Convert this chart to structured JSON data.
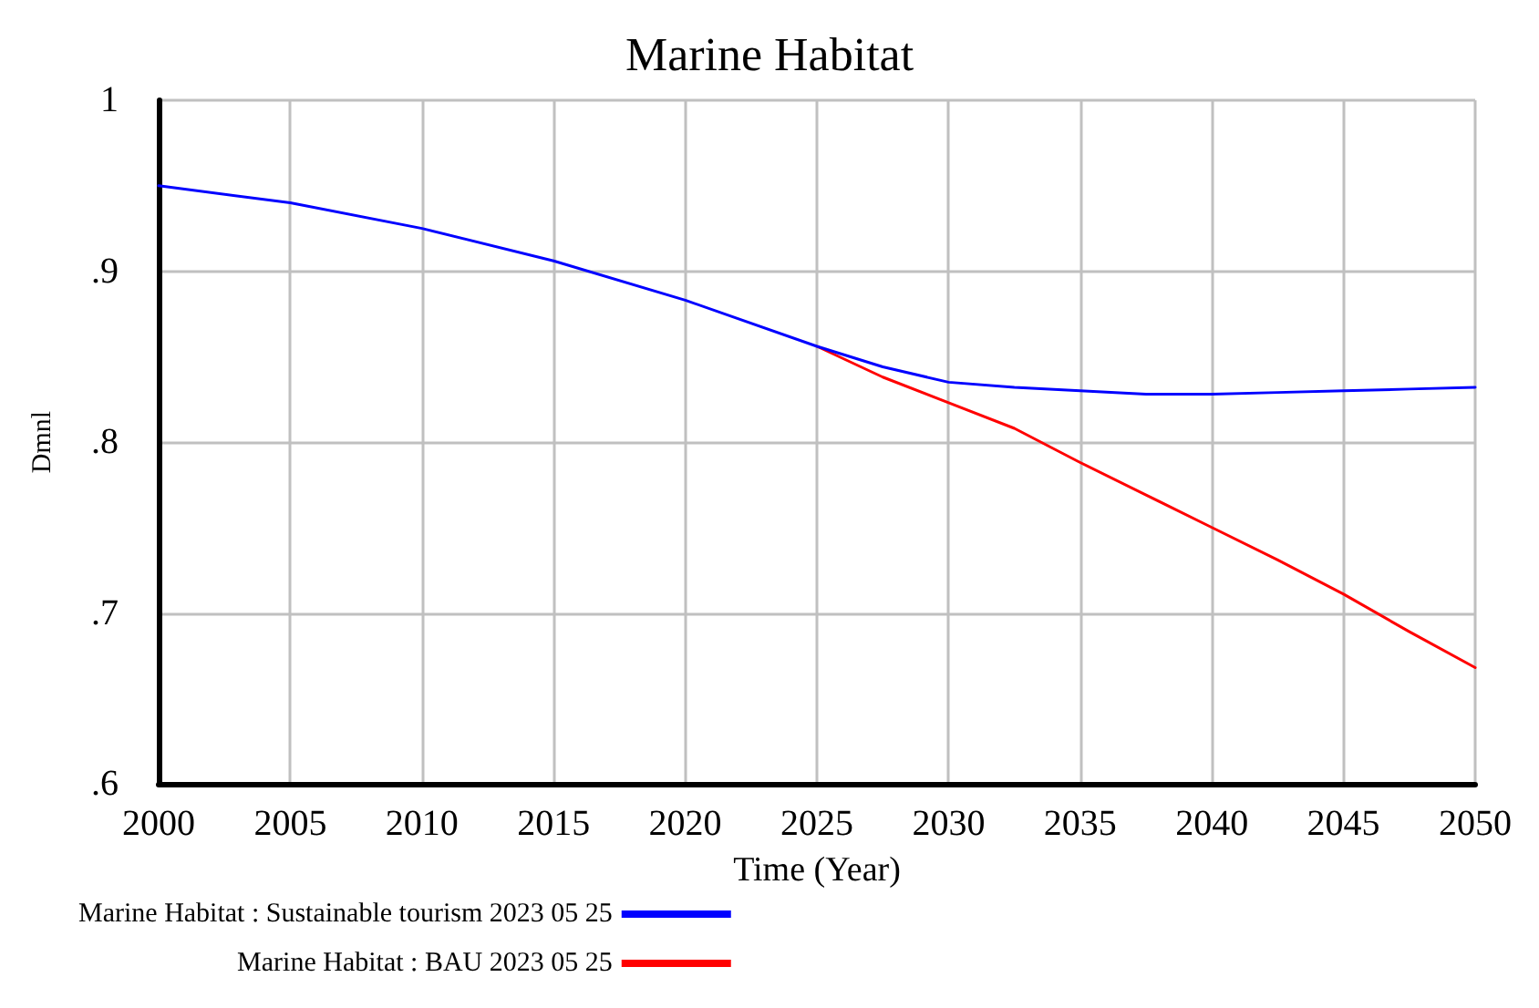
{
  "chart_data": {
    "type": "line",
    "title": "Marine Habitat",
    "xlabel": "Time (Year)",
    "ylabel": "Dmnl",
    "x": [
      2000,
      2005,
      2010,
      2015,
      2020,
      2025,
      2027.5,
      2030,
      2032.5,
      2035,
      2037.5,
      2040,
      2042.5,
      2045,
      2047.5,
      2050
    ],
    "series": [
      {
        "name": "Marine Habitat : Sustainable tourism 2023 05 25",
        "color": "#0000ff",
        "values": [
          0.95,
          0.94,
          0.925,
          0.906,
          0.883,
          0.856,
          0.844,
          0.835,
          0.832,
          0.83,
          0.828,
          0.828,
          0.829,
          0.83,
          0.831,
          0.832
        ]
      },
      {
        "name": "Marine Habitat : BAU 2023 05 25",
        "color": "#ff0000",
        "values": [
          null,
          null,
          null,
          null,
          null,
          0.856,
          0.838,
          0.823,
          0.808,
          0.788,
          0.769,
          0.75,
          0.731,
          0.711,
          0.689,
          0.668
        ]
      }
    ],
    "xlim": [
      2000,
      2050
    ],
    "xticks": [
      2000,
      2005,
      2010,
      2015,
      2020,
      2025,
      2030,
      2035,
      2040,
      2045,
      2050
    ],
    "ylim": [
      0.6,
      1
    ],
    "yticks": [
      {
        "value": 0.6,
        "label": ".6"
      },
      {
        "value": 0.7,
        "label": ".7"
      },
      {
        "value": 0.8,
        "label": ".8"
      },
      {
        "value": 0.9,
        "label": ".9"
      },
      {
        "value": 1,
        "label": "1"
      }
    ],
    "grid": true,
    "legend": "bottom",
    "marker": "none",
    "line_style": "solid"
  }
}
